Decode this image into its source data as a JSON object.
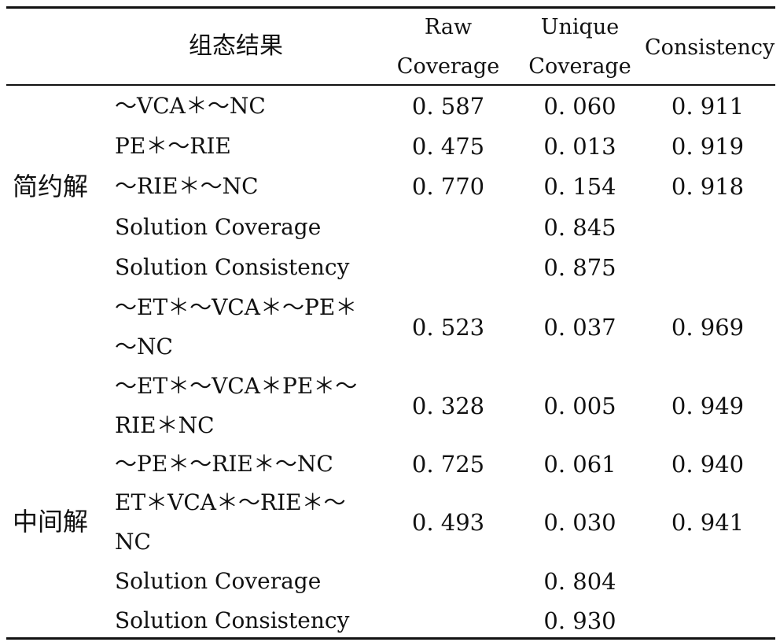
{
  "header": {
    "config": "组态结果",
    "raw_line1": "Raw",
    "raw_line2": "Coverage",
    "unique_line1": "Unique",
    "unique_line2": "Coverage",
    "consistency": "Consistency"
  },
  "groups": {
    "parsimonious": "简约解",
    "intermediate": "中间解"
  },
  "rows": [
    {
      "config": "～VCA＊～NC",
      "raw": "0. 587",
      "unique": "0. 060",
      "cons": "0. 911"
    },
    {
      "config": "PE＊～RIE",
      "raw": "0. 475",
      "unique": "0. 013",
      "cons": "0. 919"
    },
    {
      "config": "～RIE＊～NC",
      "raw": "0. 770",
      "unique": "0. 154",
      "cons": "0. 918"
    },
    {
      "config": "Solution Coverage",
      "raw": "",
      "unique": "0. 845",
      "cons": ""
    },
    {
      "config": "Solution Consistency",
      "raw": "",
      "unique": "0. 875",
      "cons": ""
    },
    {
      "config_l1": "～ET＊～VCA＊～PE＊",
      "config_l2": "～NC",
      "raw": "0. 523",
      "unique": "0. 037",
      "cons": "0. 969"
    },
    {
      "config_l1": "～ET＊～VCA＊PE＊～",
      "config_l2": "RIE＊NC",
      "raw": "0. 328",
      "unique": "0. 005",
      "cons": "0. 949"
    },
    {
      "config": "～PE＊～RIE＊～NC",
      "raw": "0. 725",
      "unique": "0. 061",
      "cons": "0. 940"
    },
    {
      "config_l1": "ET＊VCA＊～RIE＊～",
      "config_l2": "NC",
      "raw": "0. 493",
      "unique": "0. 030",
      "cons": "0. 941"
    },
    {
      "config": "Solution Coverage",
      "raw": "",
      "unique": "0. 804",
      "cons": ""
    },
    {
      "config": "Solution Consistency",
      "raw": "",
      "unique": "0. 930",
      "cons": ""
    }
  ]
}
